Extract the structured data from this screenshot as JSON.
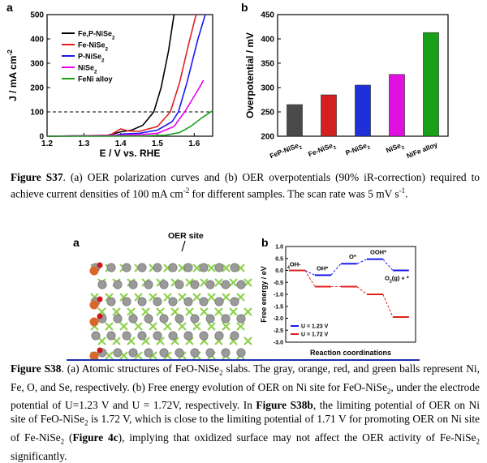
{
  "figS37": {
    "panel_a_label": "a",
    "panel_b_label": "b",
    "caption_prefix": "Figure S37",
    "caption_text": ". (a) OER polarization curves and (b) OER overpotentials (90% iR-correction) required to achieve current densities of 100 mA cm",
    "caption_sup": "-2",
    "caption_text2": " for different samples. The scan rate was 5 mV s",
    "caption_sup2": "-1",
    "caption_end": "."
  },
  "figS38": {
    "panel_a_label": "a",
    "panel_b_label": "b",
    "oer_site_label": "OER site",
    "caption_prefix": "Figure S38",
    "caption_text": ". (a) Atomic structures of FeO-NiSe",
    "caption_sub": "2",
    "caption_text2": " slabs. The gray, orange, red, and green balls represent Ni, Fe, O, and Se, respectively. (b) Free energy evolution of OER on Ni site for FeO-NiSe",
    "caption_sub2": "2",
    "caption_text3": ", under the electrode potential of U=1.23 V and U = 1.72V, respectively. In ",
    "caption_bold_ref": "Figure S38b",
    "caption_text4": ", the limiting potential of OER on Ni site of FeO-NiSe",
    "caption_sub3": "2",
    "caption_text5": " is 1.72 V, which is close to the limiting potential of 1.71 V for promoting OER on Ni site of Fe-NiSe",
    "caption_sub4": "2",
    "caption_text6": " (",
    "caption_bold_ref2": "Figure 4c",
    "caption_text7": "), implying that oxidized surface may not affect the OER activity of Fe-NiSe",
    "caption_sub5": "2",
    "caption_text8": " significantly."
  },
  "chart_data": [
    {
      "type": "line",
      "title": "",
      "xlabel": "E / V vs. RHE",
      "ylabel": "J / mA cm-2",
      "xlim": [
        1.2,
        1.65
      ],
      "ylim": [
        0,
        500
      ],
      "xticks": [
        "1.2",
        "1.3",
        "1.4",
        "1.5",
        "1.6"
      ],
      "yticks": [
        "0",
        "100",
        "200",
        "300",
        "400",
        "500"
      ],
      "reference_line_y": 100,
      "series": [
        {
          "name": "Fe,P-NiSe2",
          "color": "#000000",
          "points": [
            [
              1.2,
              0
            ],
            [
              1.36,
              2
            ],
            [
              1.4,
              18
            ],
            [
              1.43,
              25
            ],
            [
              1.46,
              45
            ],
            [
              1.49,
              100
            ],
            [
              1.51,
              200
            ],
            [
              1.53,
              350
            ],
            [
              1.545,
              500
            ]
          ]
        },
        {
          "name": "Fe-NiSe2",
          "color": "#e02020",
          "points": [
            [
              1.2,
              0
            ],
            [
              1.37,
              4
            ],
            [
              1.4,
              30
            ],
            [
              1.42,
              22
            ],
            [
              1.45,
              20
            ],
            [
              1.5,
              40
            ],
            [
              1.535,
              100
            ],
            [
              1.56,
              220
            ],
            [
              1.585,
              380
            ],
            [
              1.605,
              500
            ]
          ]
        },
        {
          "name": "P-NiSe2",
          "color": "#1a1aee",
          "points": [
            [
              1.2,
              0
            ],
            [
              1.38,
              3
            ],
            [
              1.41,
              10
            ],
            [
              1.45,
              12
            ],
            [
              1.5,
              25
            ],
            [
              1.54,
              60
            ],
            [
              1.557,
              100
            ],
            [
              1.58,
              220
            ],
            [
              1.61,
              400
            ],
            [
              1.63,
              500
            ]
          ]
        },
        {
          "name": "NiSe2",
          "color": "#ee00ee",
          "points": [
            [
              1.2,
              0
            ],
            [
              1.4,
              4
            ],
            [
              1.45,
              6
            ],
            [
              1.5,
              12
            ],
            [
              1.545,
              40
            ],
            [
              1.574,
              100
            ],
            [
              1.59,
              140
            ],
            [
              1.61,
              190
            ],
            [
              1.625,
              230
            ]
          ]
        },
        {
          "name": "FeNi alloy",
          "color": "#19a019",
          "points": [
            [
              1.2,
              0
            ],
            [
              1.45,
              1
            ],
            [
              1.52,
              4
            ],
            [
              1.56,
              15
            ],
            [
              1.59,
              40
            ],
            [
              1.62,
              75
            ],
            [
              1.65,
              105
            ]
          ]
        }
      ]
    },
    {
      "type": "bar",
      "title": "",
      "xlabel": "",
      "ylabel": "Overpotential / mV",
      "ylim": [
        200,
        450
      ],
      "yticks": [
        "200",
        "250",
        "300",
        "350",
        "400",
        "450"
      ],
      "categories": [
        "FeP-NiSe2",
        "Fe-NiSe2",
        "P-NiSe2",
        "NiSe2",
        "NiFe alloy"
      ],
      "values": [
        265,
        285,
        305,
        327,
        413
      ],
      "colors": [
        "#4a4a4a",
        "#d42020",
        "#2030d8",
        "#e010e0",
        "#18a018"
      ]
    },
    {
      "type": "line",
      "title": "",
      "xlabel": "Reaction coordinations",
      "ylabel": "Free energy / eV",
      "ylim": [
        -3.0,
        1.0
      ],
      "yticks": [
        "1.0",
        "0.5",
        "0.0",
        "-0.5",
        "-1.0",
        "-1.5",
        "-2.0",
        "-2.5",
        "-3.0"
      ],
      "step_labels": [
        "4OH-",
        "OH*",
        "O*",
        "OOH*",
        "O2(g) + *"
      ],
      "legend": [
        "U = 1.23 V",
        "U = 1.72 V"
      ],
      "series": [
        {
          "name": "U = 1.23 V",
          "color": "#1a1aee",
          "values": [
            0.0,
            -0.2,
            0.28,
            0.47,
            0.0
          ]
        },
        {
          "name": "U = 1.72 V",
          "color": "#e02020",
          "values": [
            0.0,
            -0.68,
            -0.68,
            -1.0,
            -1.95
          ]
        }
      ]
    }
  ]
}
